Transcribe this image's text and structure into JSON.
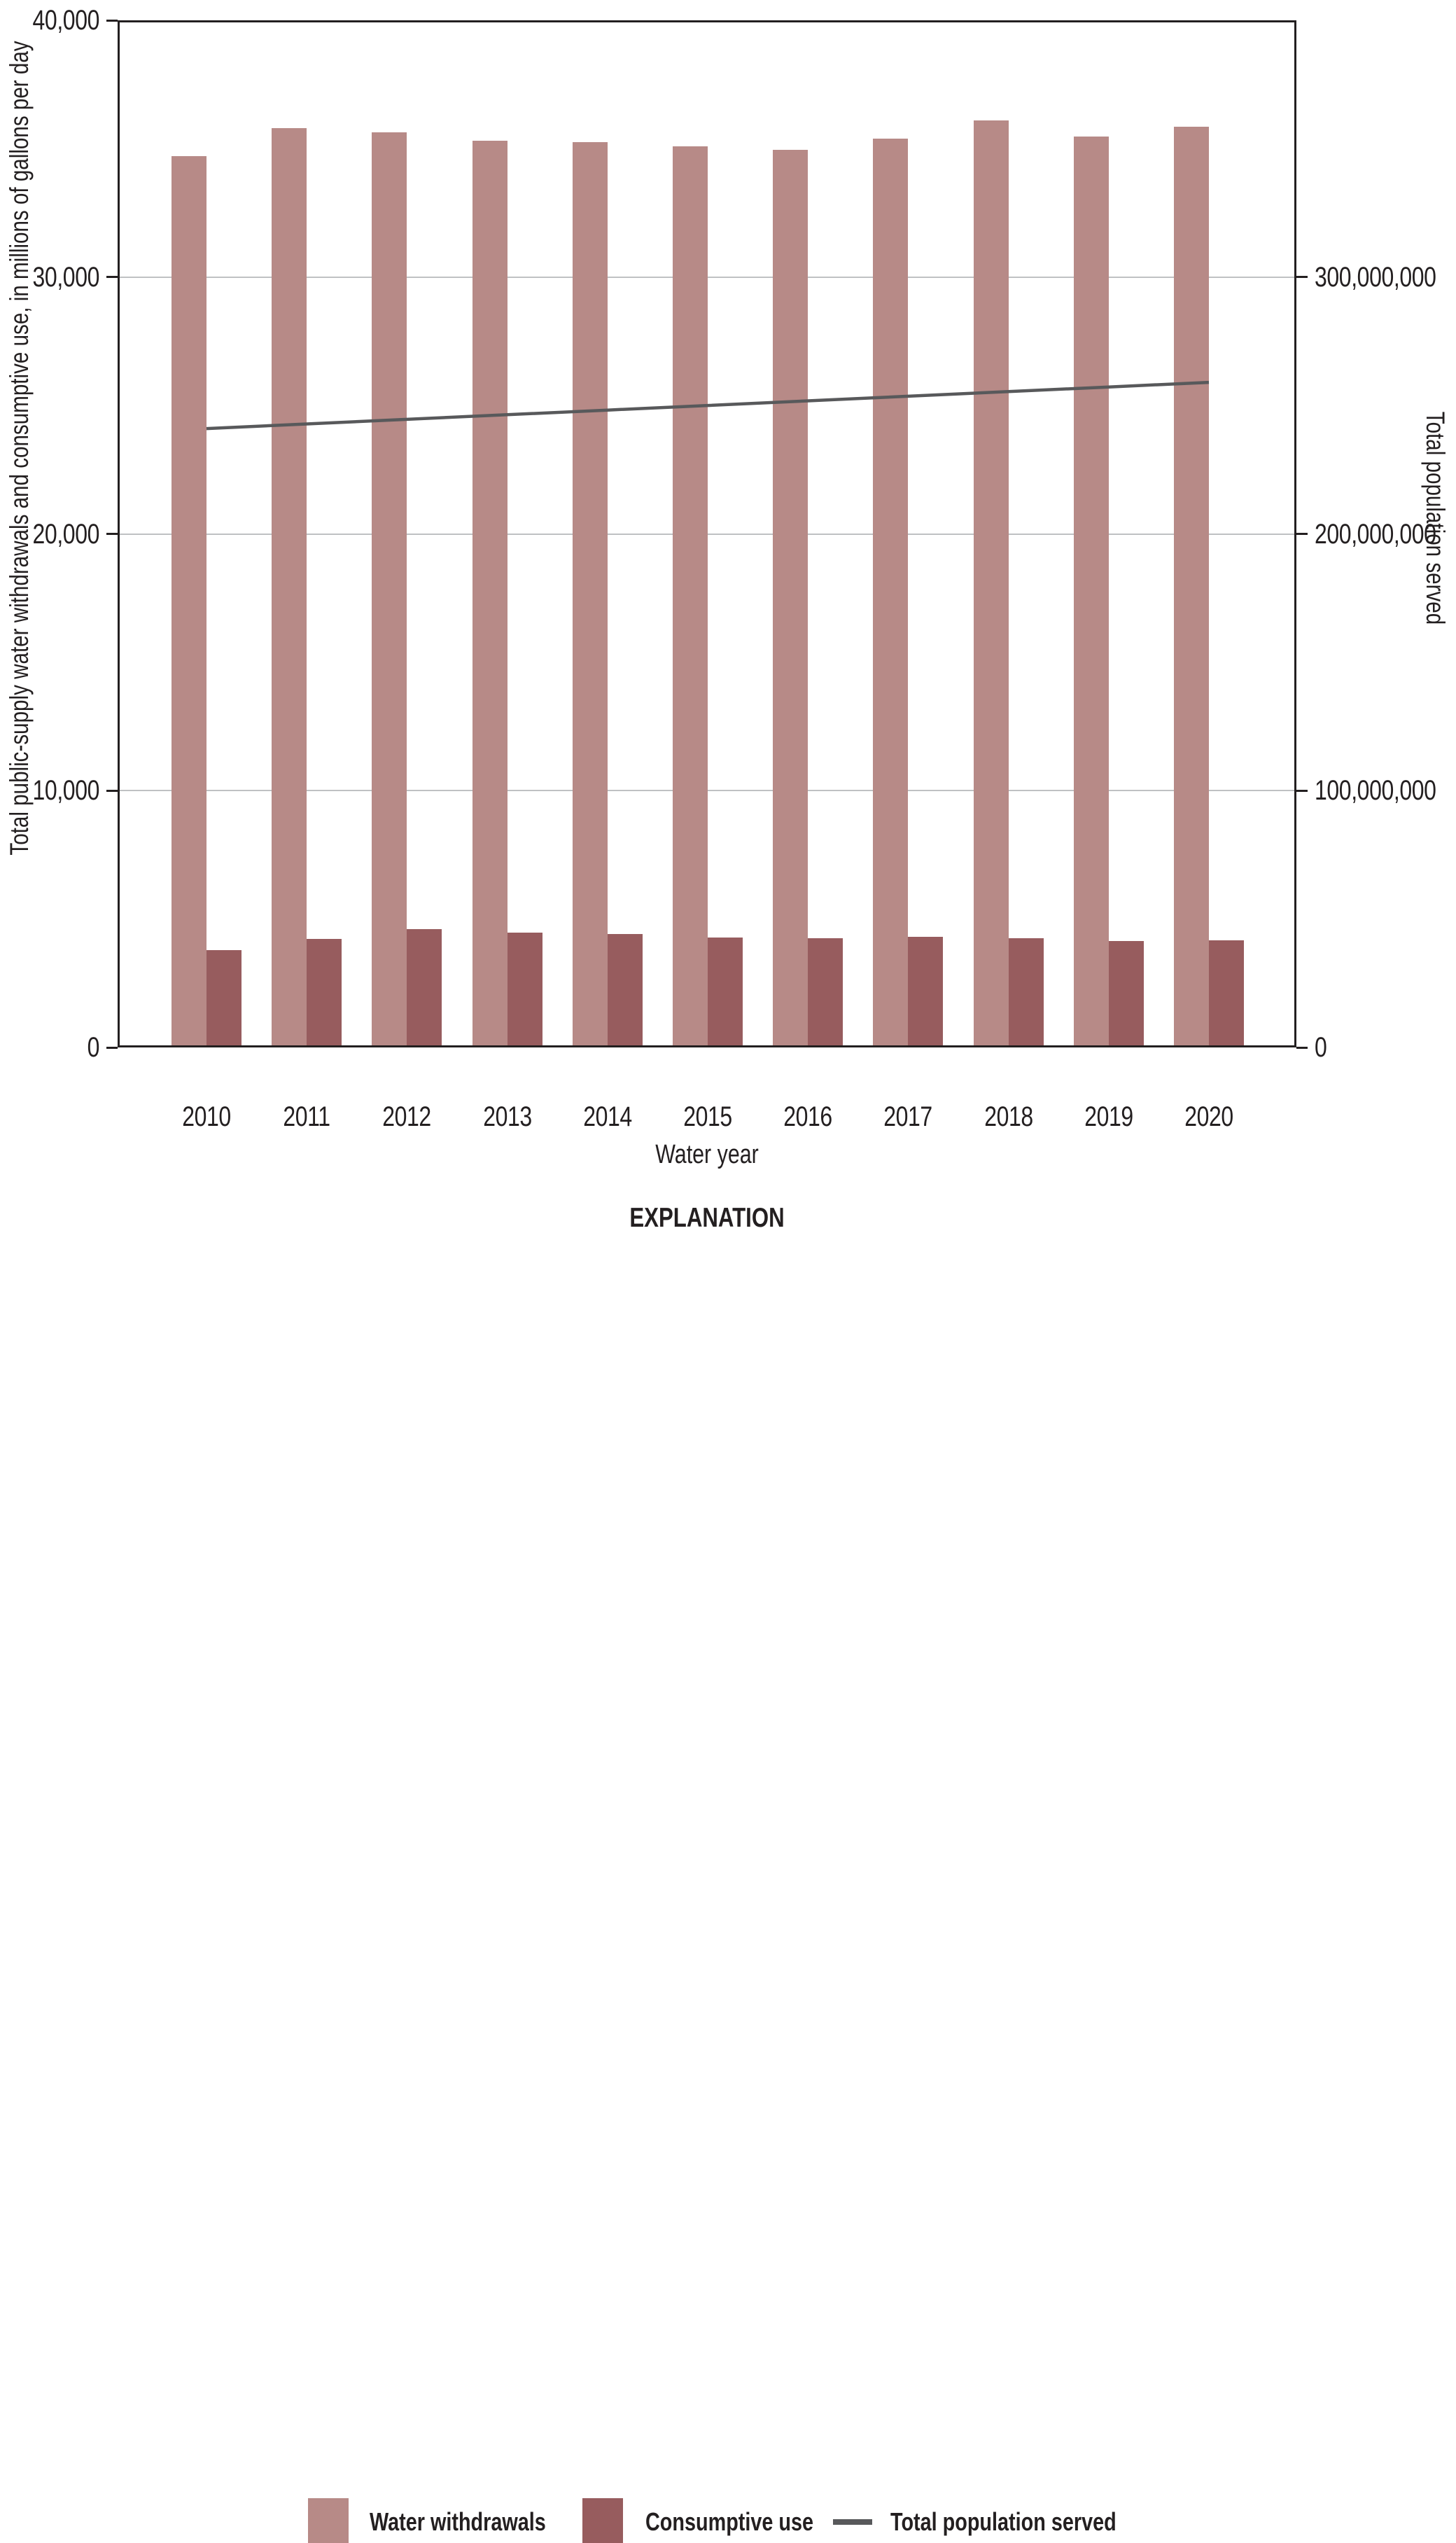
{
  "figure": {
    "explanation_title": "EXPLANATION"
  },
  "chart_data": {
    "type": "bar",
    "categories": [
      "2010",
      "2011",
      "2012",
      "2013",
      "2014",
      "2015",
      "2016",
      "2017",
      "2018",
      "2019",
      "2020"
    ],
    "series": [
      {
        "name": "Water withdrawals",
        "type": "bar",
        "axis": "left",
        "color": "#b78a87",
        "values": [
          34700,
          35800,
          35650,
          35300,
          35250,
          35100,
          34950,
          35400,
          36100,
          35480,
          35850
        ]
      },
      {
        "name": "Consumptive use",
        "type": "bar",
        "axis": "left",
        "color": "#975c5e",
        "values": [
          3790,
          4230,
          4610,
          4480,
          4420,
          4280,
          4260,
          4310,
          4260,
          4150,
          4180
        ]
      },
      {
        "name": "Total population served",
        "type": "line",
        "axis": "right",
        "color": "#58595b",
        "values": [
          241000000,
          242800000,
          244600000,
          246400000,
          248200000,
          250000000,
          251800000,
          253600000,
          255400000,
          257200000,
          259000000
        ]
      }
    ],
    "left_axis": {
      "title": "Total public-supply water withdrawals and consumptive use, in millions of gallons per day",
      "range": [
        0,
        40000
      ],
      "ticks": [
        0,
        10000,
        20000,
        30000,
        40000
      ],
      "tick_labels": [
        "0",
        "10,000",
        "20,000",
        "30,000",
        "40,000"
      ]
    },
    "right_axis": {
      "title": "Total population served",
      "range": [
        0,
        400000000
      ],
      "ticks": [
        0,
        100000000,
        200000000,
        300000000
      ],
      "tick_labels": [
        "0",
        "100,000,000",
        "200,000,000",
        "300,000,000"
      ]
    },
    "x_axis": {
      "title": "Water year"
    },
    "grid": "horizontal",
    "legend_position": "bottom"
  },
  "legend": {
    "items": [
      {
        "label": "Water withdrawals",
        "swatch": "bar",
        "color": "#b78a87"
      },
      {
        "label": "Consumptive use",
        "swatch": "bar",
        "color": "#975c5e"
      },
      {
        "label": "Total population served",
        "swatch": "line",
        "color": "#58595b"
      }
    ]
  }
}
